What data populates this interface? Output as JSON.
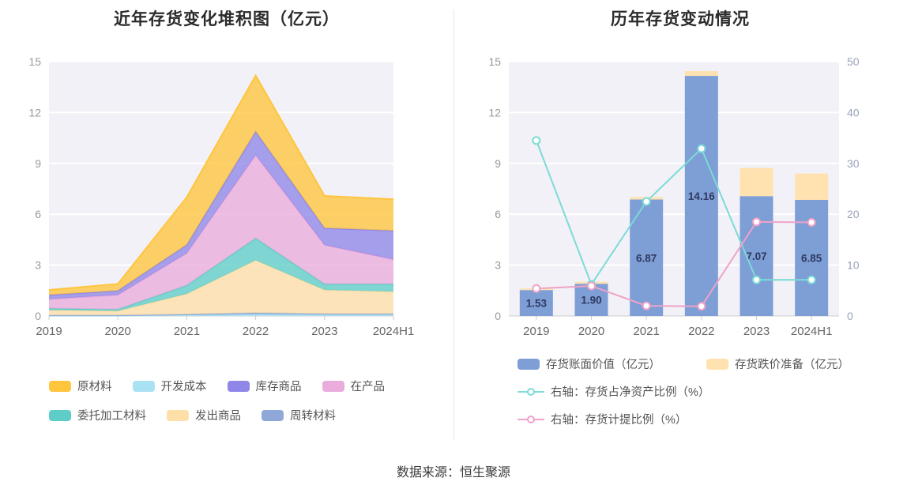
{
  "source_note": "数据来源：恒生聚源",
  "chart_data": [
    {
      "type": "area",
      "title": "近年存货变化堆积图（亿元）",
      "stacked": true,
      "categories": [
        "2019",
        "2020",
        "2021",
        "2022",
        "2023",
        "2024H1"
      ],
      "ylim": [
        0,
        15
      ],
      "ytick_step": 3,
      "plot_bg": "#f1f1f7",
      "grid_color": "#ffffff",
      "series": [
        {
          "name": "开发成本",
          "color": "#A9E2F3",
          "values": [
            0.02,
            0.02,
            0.05,
            0.1,
            0.08,
            0.08
          ]
        },
        {
          "name": "周转材料",
          "color": "#8FA8D8",
          "values": [
            0.02,
            0.02,
            0.05,
            0.08,
            0.05,
            0.05
          ]
        },
        {
          "name": "发出商品",
          "color": "#FFDFA8",
          "values": [
            0.3,
            0.25,
            1.2,
            3.1,
            1.4,
            1.3
          ]
        },
        {
          "name": "委托加工材料",
          "color": "#5FCDC7",
          "values": [
            0.1,
            0.1,
            0.5,
            1.3,
            0.35,
            0.45
          ]
        },
        {
          "name": "在产品",
          "color": "#E9ACDC",
          "values": [
            0.55,
            0.85,
            1.9,
            4.9,
            2.3,
            1.45
          ]
        },
        {
          "name": "库存商品",
          "color": "#8F86E8",
          "values": [
            0.25,
            0.25,
            0.5,
            1.4,
            1.0,
            1.7
          ]
        },
        {
          "name": "原材料",
          "color": "#FFC53D",
          "values": [
            0.3,
            0.4,
            2.8,
            3.3,
            1.9,
            1.85
          ]
        }
      ],
      "legend": [
        {
          "label": "原材料",
          "color": "#FFC53D"
        },
        {
          "label": "开发成本",
          "color": "#A9E2F3"
        },
        {
          "label": "库存商品",
          "color": "#8F86E8"
        },
        {
          "label": "在产品",
          "color": "#E9ACDC"
        },
        {
          "label": "委托加工材料",
          "color": "#5FCDC7"
        },
        {
          "label": "发出商品",
          "color": "#FFDFA8"
        },
        {
          "label": "周转材料",
          "color": "#8FA8D8"
        }
      ]
    },
    {
      "type": "bar",
      "subtype": "bar+line combo",
      "title": "历年存货变动情况",
      "categories": [
        "2019",
        "2020",
        "2021",
        "2022",
        "2023",
        "2024H1"
      ],
      "left_axis": {
        "min": 0,
        "max": 15,
        "ticks": [
          0,
          3,
          6,
          9,
          12,
          15
        ]
      },
      "right_axis": {
        "min": 0,
        "max": 50,
        "ticks": [
          0,
          10,
          20,
          30,
          40,
          50
        ]
      },
      "plot_bg": "#f1f1f7",
      "grid_color": "#ffffff",
      "bar_label_color": "#2f3a5f",
      "bars": [
        {
          "name": "存货账面价值（亿元）",
          "color": "#7E9ED6",
          "values": [
            1.53,
            1.9,
            6.87,
            14.16,
            7.07,
            6.85
          ],
          "labels": [
            "1.53",
            "1.90",
            "6.87",
            "14.16",
            "7.07",
            "6.85"
          ]
        },
        {
          "name": "存货跌价准备（亿元）",
          "color": "#FFE2B0",
          "values": [
            0.09,
            0.12,
            0.14,
            0.28,
            1.66,
            1.55
          ]
        }
      ],
      "lines": [
        {
          "name": "右轴：存货占净资产比例（%）",
          "color": "#7CDBD5",
          "axis": "right",
          "values": [
            34.5,
            6.2,
            22.5,
            32.9,
            7.1,
            7.1
          ]
        },
        {
          "name": "右轴：存货计提比例（%）",
          "color": "#F0A2C8",
          "axis": "right",
          "values": [
            5.4,
            5.9,
            2.0,
            1.9,
            18.5,
            18.4
          ]
        }
      ],
      "legend": [
        {
          "label": "存货账面价值（亿元）",
          "color": "#7E9ED6",
          "icon": "bar"
        },
        {
          "label": "存货跌价准备（亿元）",
          "color": "#FFE2B0",
          "icon": "bar"
        },
        {
          "label": "右轴：存货占净资产比例（%）",
          "color": "#7CDBD5",
          "icon": "line"
        },
        {
          "label": "右轴：存货计提比例（%）",
          "color": "#F0A2C8",
          "icon": "line"
        }
      ]
    }
  ]
}
